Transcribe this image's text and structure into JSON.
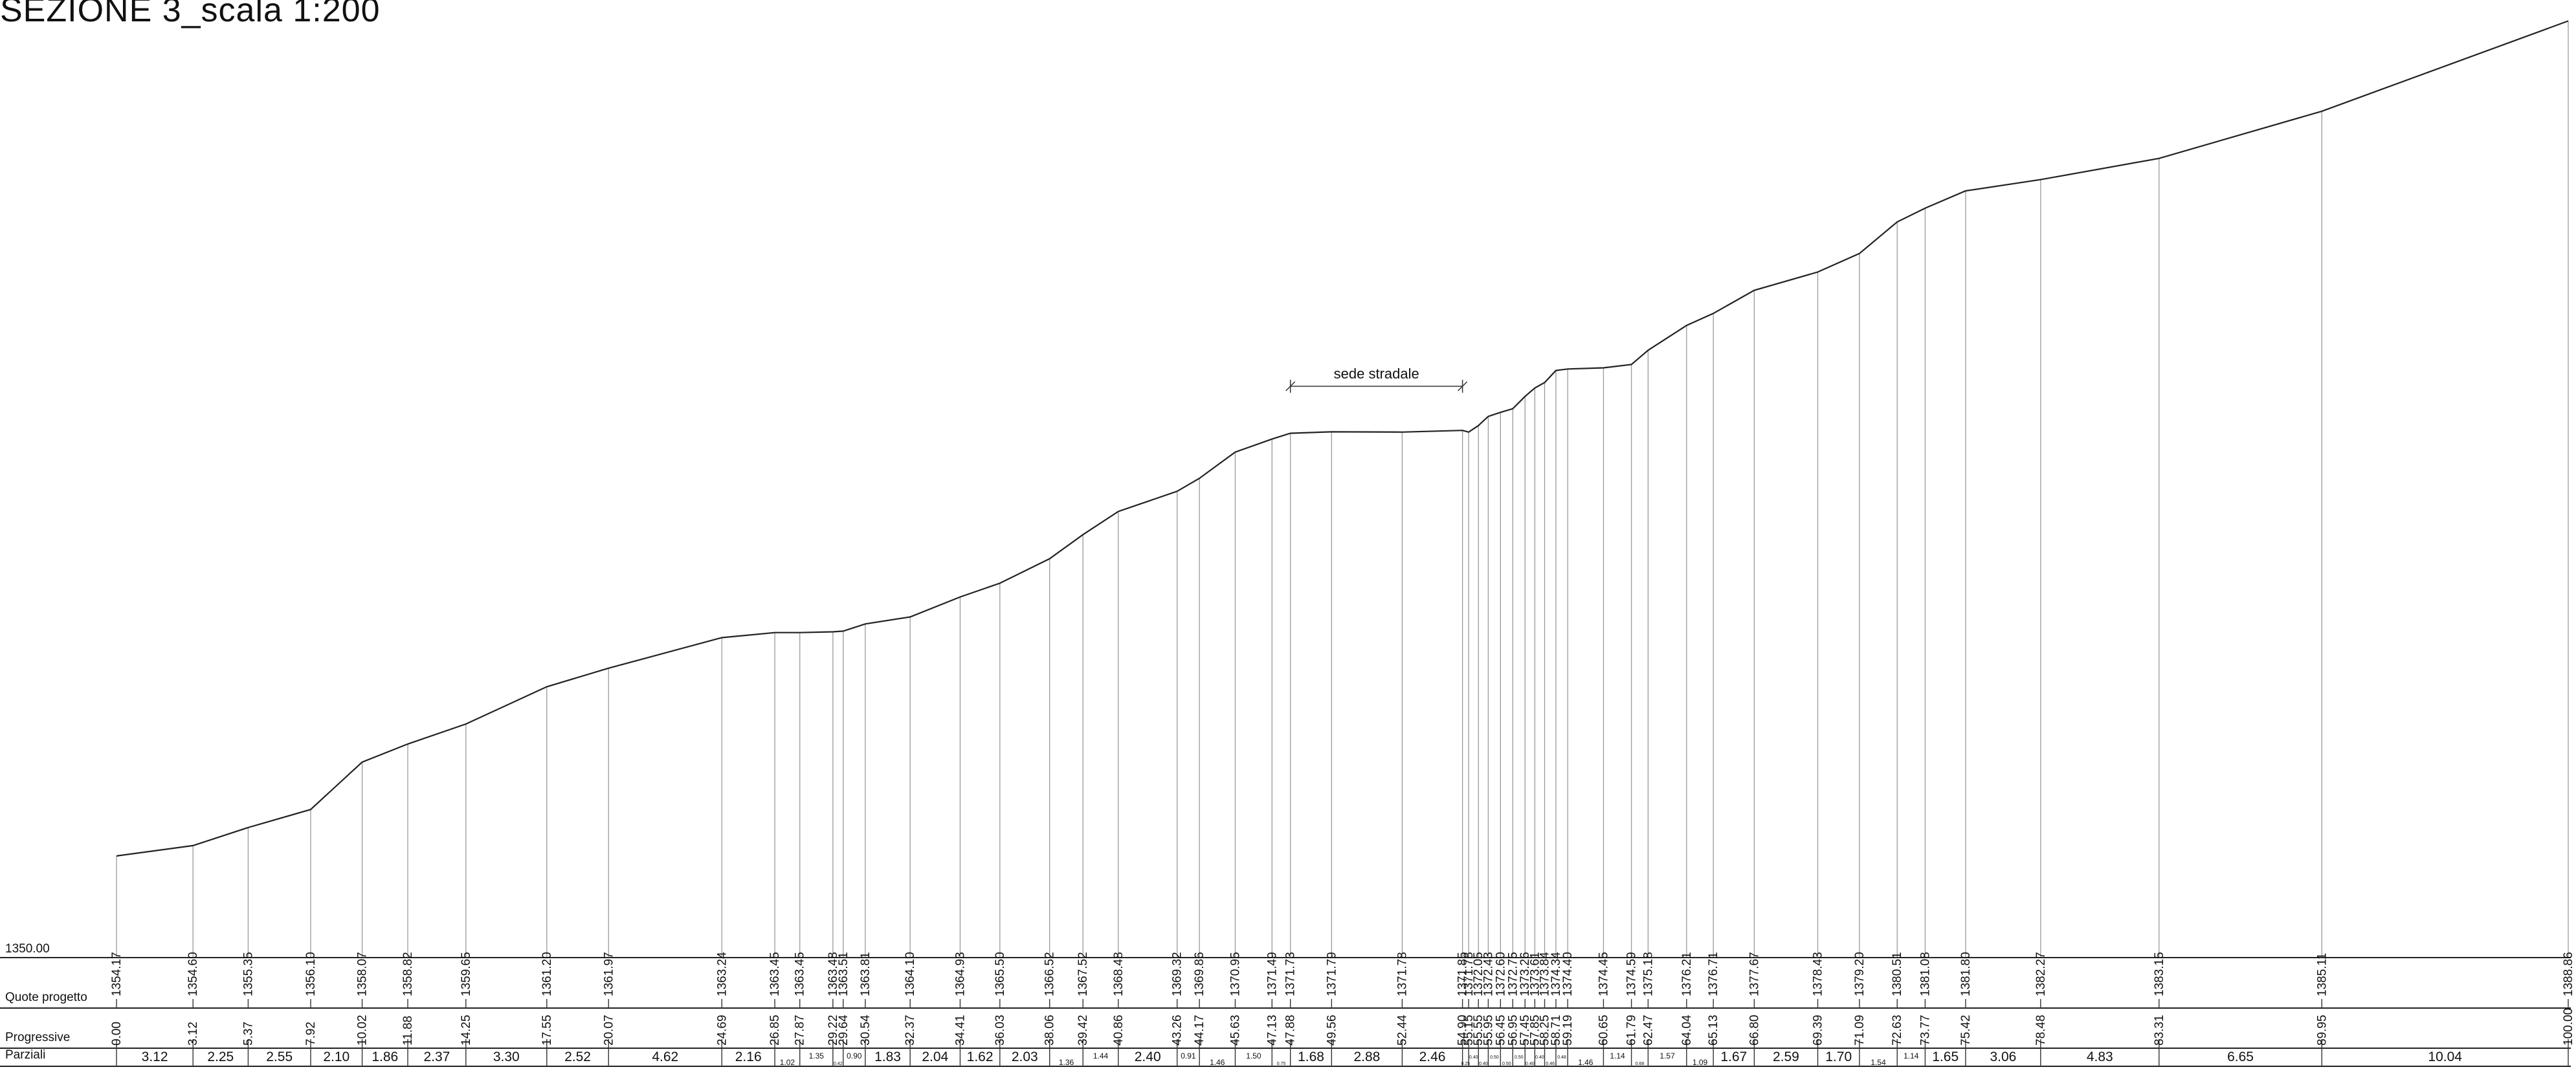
{
  "title": "SEZIONE 3_scala 1:200",
  "datum_label": "1350.00",
  "row_labels": {
    "quote": "Quote progetto",
    "progressive": "Progressive",
    "parziali": "Parziali"
  },
  "annotation": "sede stradale",
  "chart_data": {
    "type": "line",
    "title": "SEZIONE 3_scala 1:200",
    "datum": 1350.0,
    "xlim": [
      0,
      100
    ],
    "y_range_m": [
      1350,
      1389.5
    ],
    "annotation": {
      "text": "sede stradale",
      "x_start": 47.88,
      "x_end": 54.9
    },
    "points": [
      {
        "x": 0.0,
        "y": 1354.17
      },
      {
        "x": 3.12,
        "y": 1354.6
      },
      {
        "x": 5.37,
        "y": 1355.35
      },
      {
        "x": 7.92,
        "y": 1356.1
      },
      {
        "x": 10.02,
        "y": 1358.07
      },
      {
        "x": 11.88,
        "y": 1358.82
      },
      {
        "x": 14.25,
        "y": 1359.65
      },
      {
        "x": 17.55,
        "y": 1361.2
      },
      {
        "x": 20.07,
        "y": 1361.97
      },
      {
        "x": 24.69,
        "y": 1363.24
      },
      {
        "x": 26.85,
        "y": 1363.45
      },
      {
        "x": 27.87,
        "y": 1363.45
      },
      {
        "x": 29.22,
        "y": 1363.48
      },
      {
        "x": 29.64,
        "y": 1363.51
      },
      {
        "x": 30.54,
        "y": 1363.81
      },
      {
        "x": 32.37,
        "y": 1364.1
      },
      {
        "x": 34.41,
        "y": 1364.93
      },
      {
        "x": 36.03,
        "y": 1365.5
      },
      {
        "x": 38.06,
        "y": 1366.52
      },
      {
        "x": 39.42,
        "y": 1367.52
      },
      {
        "x": 40.86,
        "y": 1368.48
      },
      {
        "x": 43.26,
        "y": 1369.32
      },
      {
        "x": 44.17,
        "y": 1369.86
      },
      {
        "x": 45.63,
        "y": 1370.95
      },
      {
        "x": 47.13,
        "y": 1371.49
      },
      {
        "x": 47.88,
        "y": 1371.73
      },
      {
        "x": 49.56,
        "y": 1371.79
      },
      {
        "x": 52.44,
        "y": 1371.78
      },
      {
        "x": 54.9,
        "y": 1371.85
      },
      {
        "x": 55.15,
        "y": 1371.78
      },
      {
        "x": 55.55,
        "y": 1372.05
      },
      {
        "x": 55.95,
        "y": 1372.43
      },
      {
        "x": 56.45,
        "y": 1372.6
      },
      {
        "x": 56.95,
        "y": 1372.75
      },
      {
        "x": 57.45,
        "y": 1373.26
      },
      {
        "x": 57.85,
        "y": 1373.61
      },
      {
        "x": 58.25,
        "y": 1373.84
      },
      {
        "x": 58.71,
        "y": 1374.34
      },
      {
        "x": 59.19,
        "y": 1374.4
      },
      {
        "x": 60.65,
        "y": 1374.45
      },
      {
        "x": 61.79,
        "y": 1374.59
      },
      {
        "x": 62.47,
        "y": 1375.18
      },
      {
        "x": 64.04,
        "y": 1376.21
      },
      {
        "x": 65.13,
        "y": 1376.71
      },
      {
        "x": 66.8,
        "y": 1377.67
      },
      {
        "x": 69.39,
        "y": 1378.43
      },
      {
        "x": 71.09,
        "y": 1379.2
      },
      {
        "x": 72.63,
        "y": 1380.51
      },
      {
        "x": 73.77,
        "y": 1381.08
      },
      {
        "x": 75.42,
        "y": 1381.8
      },
      {
        "x": 78.48,
        "y": 1382.27
      },
      {
        "x": 83.31,
        "y": 1383.15
      },
      {
        "x": 89.95,
        "y": 1385.11
      },
      {
        "x": 100.0,
        "y": 1388.86
      }
    ],
    "quote_labels": [
      "1354.17",
      "1354.60",
      "1355.35",
      "1356.10",
      "1358.07",
      "1358.82",
      "1359.65",
      "1361.20",
      "1361.97",
      "1363.24",
      "1363.45",
      "1363.45",
      "1363.48",
      "1363.51",
      "1363.81",
      "1364.10",
      "1364.93",
      "1365.50",
      "1366.52",
      "1367.52",
      "1368.48",
      "1369.32",
      "1369.86",
      "1370.95",
      "1371.49",
      "1371.73",
      "1371.79",
      "1371.78",
      "1371.85",
      "1371.78",
      "1372.05",
      "1372.43",
      "1372.60",
      "1372.75",
      "1373.26",
      "1373.61",
      "1373.84",
      "1374.34",
      "1374.40",
      "1374.45",
      "1374.59",
      "1375.18",
      "1376.21",
      "1376.71",
      "1377.67",
      "1378.43",
      "1379.20",
      "1380.51",
      "1381.08",
      "1381.80",
      "1382.27",
      "1383.15",
      "1385.11",
      "1388.86"
    ],
    "progressive_labels": [
      "0.00",
      "3.12",
      "5.37",
      "7.92",
      "10.02",
      "11.88",
      "14.25",
      "17.55",
      "20.07",
      "24.69",
      "26.85",
      "27.87",
      "29.22",
      "29.64",
      "30.54",
      "32.37",
      "34.41",
      "36.03",
      "38.06",
      "39.42",
      "40.86",
      "43.26",
      "44.17",
      "45.63",
      "47.13",
      "47.88",
      "49.56",
      "52.44",
      "54.90",
      "55.15",
      "55.55",
      "55.95",
      "56.45",
      "56.95",
      "57.45",
      "57.85",
      "58.25",
      "58.71",
      "59.19",
      "60.65",
      "61.79",
      "62.47",
      "64.04",
      "65.13",
      "66.80",
      "69.39",
      "71.09",
      "72.63",
      "73.77",
      "75.42",
      "78.48",
      "83.31",
      "89.95",
      "100.00"
    ],
    "parziali_labels": [
      "3.12",
      "2.25",
      "2.55",
      "2.10",
      "1.86",
      "2.37",
      "3.30",
      "2.52",
      "4.62",
      "2.16",
      "1.02",
      "1.35",
      "0.42",
      "0.90",
      "1.83",
      "2.04",
      "1.62",
      "2.03",
      "1.36",
      "1.44",
      "2.40",
      "0.91",
      "1.46",
      "1.50",
      "0.75",
      "1.68",
      "2.88",
      "2.46",
      "0.25",
      "0.40",
      "0.40",
      "0.50",
      "0.50",
      "0.50",
      "0.40",
      "0.40",
      "0.46",
      "0.48",
      "1.46",
      "1.14",
      "0.68",
      "1.57",
      "1.09",
      "1.67",
      "2.59",
      "1.70",
      "1.54",
      "1.14",
      "1.65",
      "3.06",
      "4.83",
      "6.65",
      "10.04"
    ]
  }
}
